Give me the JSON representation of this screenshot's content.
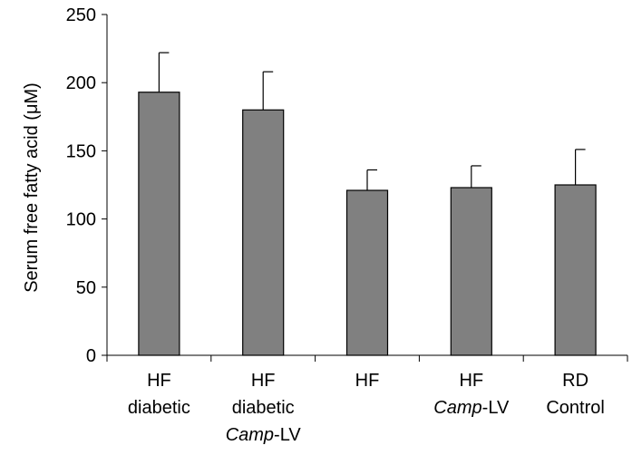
{
  "chart_data": {
    "type": "bar",
    "title": "",
    "xlabel": "",
    "ylabel": "Serum free fatty acid (μM)",
    "ylim": [
      0,
      250
    ],
    "yticks": [
      0,
      50,
      100,
      150,
      200,
      250
    ],
    "grid": false,
    "categories": [
      {
        "lines": [
          {
            "parts": [
              {
                "text": "HF"
              }
            ]
          },
          {
            "parts": [
              {
                "text": "diabetic"
              }
            ]
          }
        ]
      },
      {
        "lines": [
          {
            "parts": [
              {
                "text": "HF"
              }
            ]
          },
          {
            "parts": [
              {
                "text": "diabetic"
              }
            ]
          },
          {
            "parts": [
              {
                "text": "Camp",
                "italic": true
              },
              {
                "text": "-LV"
              }
            ]
          }
        ]
      },
      {
        "lines": [
          {
            "parts": [
              {
                "text": "HF"
              }
            ]
          }
        ]
      },
      {
        "lines": [
          {
            "parts": [
              {
                "text": "HF"
              }
            ]
          },
          {
            "parts": [
              {
                "text": "Camp",
                "italic": true
              },
              {
                "text": "-LV"
              }
            ]
          }
        ]
      },
      {
        "lines": [
          {
            "parts": [
              {
                "text": "RD"
              }
            ]
          },
          {
            "parts": [
              {
                "text": "Control"
              }
            ]
          }
        ]
      }
    ],
    "values": [
      193,
      180,
      121,
      123,
      125
    ],
    "errors": [
      29,
      28,
      15,
      16,
      26
    ],
    "bar_color": "#808080"
  }
}
